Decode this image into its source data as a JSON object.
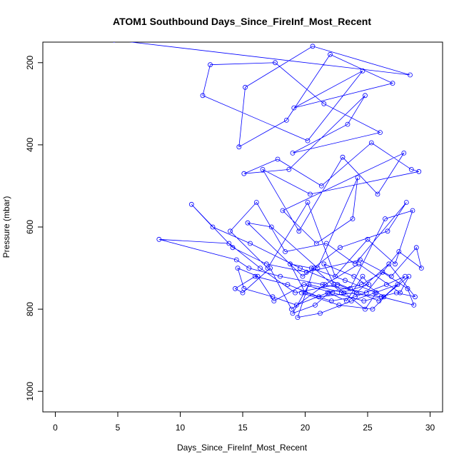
{
  "chart_data": {
    "type": "line",
    "title": "ATOM1 Southbound Days_Since_FireInf_Most_Recent",
    "xlabel": "Days_Since_FireInf_Most_Recent",
    "ylabel": "Pressure (mbar)",
    "xlim": [
      -1,
      31
    ],
    "ylim": [
      1050,
      150
    ],
    "y_reversed": true,
    "x_ticks": [
      0,
      5,
      10,
      15,
      20,
      25,
      30
    ],
    "y_ticks": [
      200,
      400,
      600,
      800,
      1000
    ],
    "grid": false,
    "series_color": "#0000ff",
    "series": [
      {
        "x": [
          4.7,
          28.4,
          20.6,
          15.2,
          14.7,
          18.5,
          22.0,
          27.0,
          19.1,
          24.6,
          20.2,
          11.8,
          12.4,
          17.6,
          21.5,
          26.0,
          19.0,
          23.4,
          24.8,
          18.7,
          15.1,
          17.8,
          21.3,
          25.3,
          28.5,
          29.1,
          20.4,
          16.6,
          19.5,
          23.0,
          25.8,
          27.9,
          18.2,
          20.9,
          23.8,
          24.2,
          21.0,
          17.3,
          15.4,
          19.8,
          22.8,
          26.6,
          28.1,
          24.0,
          21.7,
          18.4,
          16.1,
          14.0,
          17.0,
          20.2,
          22.4,
          25.0,
          27.2,
          28.6,
          26.4,
          23.6,
          19.6,
          15.6,
          12.6,
          10.9,
          14.2,
          16.9,
          20.1,
          24.4,
          26.9,
          28.9,
          29.3,
          27.5,
          24.9,
          21.4,
          18.0,
          15.5,
          14.5,
          8.3,
          13.9,
          16.4,
          19.2,
          22.6,
          25.9,
          28.3,
          27.6,
          24.3,
          21.6,
          18.9,
          17.2,
          15.0,
          14.4,
          16.0,
          18.6,
          21.1,
          24.1,
          26.7,
          28.8,
          27.3,
          24.7,
          22.2,
          19.9,
          17.5,
          16.2,
          14.6,
          15.1,
          17.4,
          19.3,
          21.8,
          24.5,
          26.2,
          28.2,
          28.7,
          26.1,
          23.1,
          20.3,
          19.0,
          20.8,
          21.9,
          23.3,
          24.6,
          25.1,
          22.9,
          20.7,
          19.4,
          21.2,
          23.7,
          25.6,
          27.4,
          26.3,
          23.9,
          21.5,
          22.3,
          24.8,
          25.7,
          23.2,
          20.5,
          18.8,
          20.0,
          22.1,
          24.0,
          26.5,
          28.0,
          25.4,
          22.7,
          19.7
        ],
        "y": [
          145,
          230,
          160,
          260,
          405,
          340,
          180,
          250,
          310,
          220,
          390,
          280,
          205,
          200,
          300,
          370,
          420,
          350,
          280,
          460,
          470,
          435,
          500,
          395,
          460,
          465,
          520,
          460,
          610,
          430,
          520,
          420,
          560,
          640,
          580,
          480,
          700,
          600,
          590,
          720,
          650,
          610,
          540,
          690,
          640,
          660,
          540,
          610,
          700,
          540,
          720,
          630,
          690,
          560,
          580,
          750,
          700,
          640,
          600,
          545,
          650,
          690,
          710,
          680,
          720,
          650,
          700,
          660,
          760,
          740,
          720,
          700,
          680,
          630,
          640,
          700,
          760,
          740,
          780,
          720,
          760,
          690,
          740,
          800,
          700,
          760,
          750,
          720,
          740,
          770,
          760,
          690,
          770,
          760,
          780,
          760,
          740,
          780,
          720,
          700,
          750,
          770,
          790,
          760,
          740,
          710,
          750,
          790,
          770,
          760,
          740,
          810,
          790,
          760,
          780,
          720,
          740,
          760,
          700,
          820,
          810,
          780,
          760,
          740,
          770,
          720,
          690,
          740,
          800,
          760,
          730,
          700,
          690,
          760,
          780,
          770,
          740,
          720,
          800,
          790,
          760
        ]
      }
    ]
  }
}
